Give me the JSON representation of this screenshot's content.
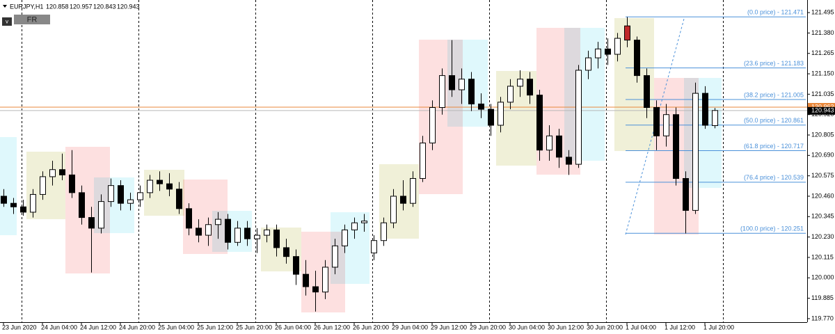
{
  "chart_data": {
    "type": "candlestick",
    "symbol": "EURJPY,H1",
    "button": "FR",
    "menu_icon": "v",
    "categories": [
      "23 Jun 2020",
      null,
      null,
      null,
      "24 Jun 04:00",
      null,
      null,
      null,
      "24 Jun 12:00",
      null,
      null,
      null,
      "24 Jun 20:00",
      null,
      null,
      null,
      "25 Jun 04:00",
      null,
      null,
      null,
      "25 Jun 12:00",
      null,
      null,
      null,
      "25 Jun 20:00",
      null,
      null,
      null,
      "26 Jun 04:00",
      null,
      null,
      null,
      "26 Jun 12:00",
      null,
      null,
      null,
      "26 Jun 20:00",
      null,
      null,
      null,
      "29 Jun 04:00",
      null,
      null,
      null,
      "29 Jun 12:00",
      null,
      null,
      null,
      "29 Jun 20:00",
      null,
      null,
      null,
      "30 Jun 04:00",
      null,
      null,
      null,
      "30 Jun 12:00",
      null,
      null,
      null,
      "30 Jun 20:00",
      null,
      null,
      null,
      "1 Jul 04:00",
      null,
      null,
      null,
      "1 Jul 12:00",
      null,
      null,
      null,
      "1 Jul 20:00",
      null
    ],
    "open": [
      120.46,
      120.42,
      120.4,
      120.37,
      120.47,
      120.57,
      120.61,
      120.58,
      120.48,
      120.34,
      120.28,
      120.43,
      120.52,
      120.42,
      120.44,
      120.48,
      120.55,
      120.53,
      120.5,
      120.39,
      120.28,
      120.24,
      120.3,
      120.33,
      120.2,
      120.28,
      120.22,
      120.24,
      120.27,
      120.17,
      120.12,
      120.02,
      119.95,
      119.92,
      120.06,
      120.18,
      120.27,
      120.31,
      120.14,
      120.21,
      120.31,
      120.46,
      120.42,
      120.56,
      120.76,
      120.96,
      121.14,
      121.06,
      121.12,
      120.98,
      120.95,
      120.86,
      120.99,
      121.08,
      121.12,
      121.03,
      120.72,
      120.8,
      120.68,
      120.64,
      121.17,
      121.24,
      121.29,
      121.26,
      121.42,
      121.34,
      121.14,
      120.96,
      120.8,
      120.92,
      120.56,
      120.38,
      121.04,
      120.858
    ],
    "high": [
      120.5,
      120.45,
      120.44,
      120.5,
      120.6,
      120.66,
      120.7,
      120.72,
      120.52,
      120.4,
      120.47,
      120.56,
      120.55,
      120.48,
      120.52,
      120.58,
      120.6,
      120.59,
      120.54,
      120.42,
      120.33,
      120.34,
      120.37,
      120.36,
      120.32,
      120.32,
      120.28,
      120.3,
      120.3,
      120.22,
      120.16,
      120.1,
      120.04,
      120.1,
      120.22,
      120.3,
      120.34,
      120.36,
      120.24,
      120.34,
      120.5,
      120.55,
      120.6,
      120.8,
      121.0,
      121.18,
      121.34,
      121.18,
      121.16,
      121.04,
      120.98,
      121.02,
      121.12,
      121.17,
      121.16,
      121.06,
      120.86,
      120.84,
      120.72,
      121.2,
      121.28,
      121.33,
      121.35,
      121.38,
      121.47,
      121.36,
      121.18,
      121.0,
      120.98,
      120.96,
      120.6,
      121.1,
      121.08,
      120.957
    ],
    "low": [
      120.4,
      120.36,
      120.35,
      120.34,
      120.44,
      120.52,
      120.55,
      120.45,
      120.3,
      120.03,
      120.25,
      120.4,
      120.38,
      120.38,
      120.4,
      120.45,
      120.49,
      120.46,
      120.36,
      120.24,
      120.2,
      120.18,
      120.22,
      120.16,
      120.18,
      120.18,
      120.14,
      120.2,
      120.12,
      120.08,
      119.96,
      119.9,
      119.81,
      119.88,
      120.02,
      120.14,
      120.22,
      120.26,
      120.1,
      120.18,
      120.28,
      120.38,
      120.4,
      120.54,
      120.72,
      120.92,
      121.02,
      120.98,
      120.94,
      120.9,
      120.8,
      120.82,
      120.95,
      121.02,
      120.98,
      120.66,
      120.66,
      120.62,
      120.58,
      120.62,
      121.12,
      121.18,
      121.2,
      121.22,
      121.3,
      121.1,
      120.9,
      120.72,
      120.74,
      120.52,
      120.25,
      120.36,
      120.84,
      120.843
    ],
    "close": [
      120.42,
      120.4,
      120.37,
      120.47,
      120.57,
      120.61,
      120.58,
      120.48,
      120.34,
      120.28,
      120.43,
      120.52,
      120.42,
      120.44,
      120.48,
      120.55,
      120.53,
      120.5,
      120.39,
      120.28,
      120.24,
      120.3,
      120.33,
      120.2,
      120.28,
      120.22,
      120.24,
      120.27,
      120.17,
      120.12,
      120.02,
      119.95,
      119.92,
      120.06,
      120.18,
      120.27,
      120.31,
      120.32,
      120.21,
      120.31,
      120.46,
      120.42,
      120.56,
      120.76,
      120.96,
      121.14,
      121.06,
      121.12,
      120.98,
      120.95,
      120.86,
      120.99,
      121.08,
      121.12,
      121.03,
      120.72,
      120.8,
      120.68,
      120.64,
      121.17,
      121.24,
      121.29,
      121.26,
      121.35,
      121.34,
      121.14,
      120.96,
      120.8,
      120.92,
      120.56,
      120.38,
      121.04,
      120.86,
      120.943
    ],
    "ask": 120.962,
    "ylim": [
      119.75,
      121.566
    ],
    "yticks": [
      121.495,
      {
        "value": 121.38,
        "label": "121.380"
      },
      121.265,
      {
        "value": 121.15,
        "label": "121.150"
      },
      121.035,
      {
        "value": 120.92,
        "label": "120.920"
      },
      120.805,
      {
        "value": 120.69,
        "label": "120.690"
      },
      120.575,
      {
        "value": 120.46,
        "label": "120.460"
      },
      120.345,
      {
        "value": 120.23,
        "label": "120.230"
      },
      120.115,
      {
        "value": 120,
        "label": "120.000"
      },
      119.885,
      {
        "value": 119.77,
        "label": "119.770"
      }
    ],
    "fibonacci": [
      {
        "value": 121.471,
        "label": "(0.0 price) - 121.471"
      },
      {
        "value": 121.183,
        "label": "(23.6 price) - 121.183"
      },
      {
        "value": 121.005,
        "label": "(38.2 price) - 121.005"
      },
      {
        "value": 120.861,
        "label": "(50.0 price) - 120.861"
      },
      {
        "value": 120.717,
        "label": "(61.8 price) - 120.717"
      },
      {
        "value": 120.539,
        "label": "(76.4 price) - 120.539"
      },
      {
        "value": 120.251,
        "label": "(100.0 price) - 120.251"
      }
    ]
  }
}
